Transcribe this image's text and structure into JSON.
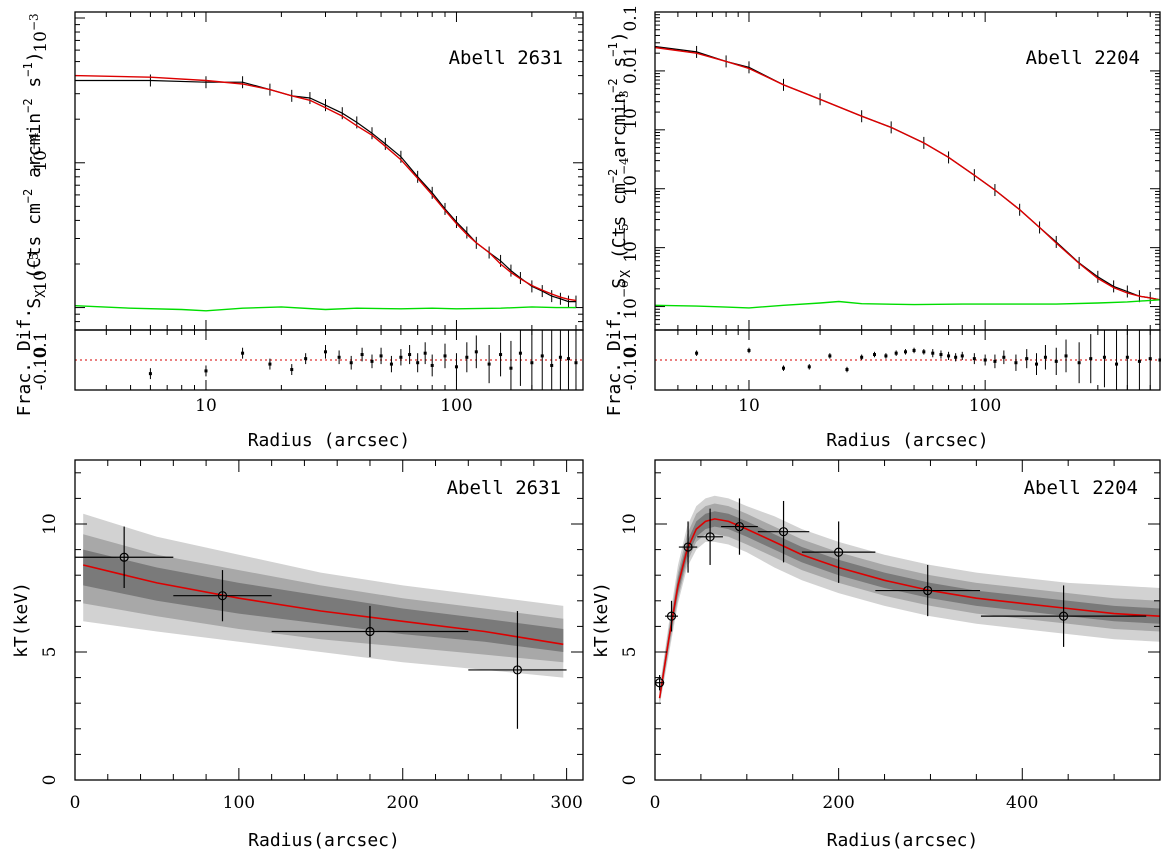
{
  "chart_data": [
    {
      "type": "line",
      "panel": "sx-2631",
      "annotation": "Abell 2631",
      "ylabel": "S_X (Cts cm^-2 arcmin^-2 s^-1)",
      "xlabel": "Radius (arcsec)",
      "xscale": "log",
      "yscale": "log",
      "xlim": [
        3,
        320
      ],
      "ylim": [
        7e-06,
        0.0011
      ],
      "x_ticks": [
        "10",
        "100"
      ],
      "y_ticks": [
        "10^-5",
        "10^-4",
        "10^-3"
      ],
      "series": [
        {
          "role": "data",
          "color": "#000000",
          "x": [
            3,
            6,
            10,
            14,
            18,
            22,
            26,
            30,
            35,
            40,
            46,
            52,
            60,
            70,
            80,
            90,
            100,
            110,
            120,
            135,
            150,
            165,
            180,
            200,
            220,
            240,
            260,
            280,
            300
          ],
          "y": [
            0.00037,
            0.00037,
            0.00036,
            0.00036,
            0.00032,
            0.00029,
            0.00028,
            0.00025,
            0.00022,
            0.00019,
            0.00016,
            0.000135,
            0.00011,
            8e-05,
            6.2e-05,
            4.8e-05,
            3.9e-05,
            3.3e-05,
            2.8e-05,
            2.4e-05,
            2.1e-05,
            1.8e-05,
            1.6e-05,
            1.4e-05,
            1.3e-05,
            1.2e-05,
            1.15e-05,
            1.1e-05,
            1.1e-05
          ]
        },
        {
          "role": "model",
          "color": "#dd0000",
          "x": [
            3,
            6,
            10,
            14,
            18,
            22,
            26,
            30,
            35,
            40,
            46,
            52,
            60,
            70,
            80,
            90,
            100,
            110,
            120,
            135,
            150,
            165,
            180,
            200,
            220,
            240,
            260,
            280,
            300
          ],
          "y": [
            0.0004,
            0.00039,
            0.00037,
            0.00035,
            0.00032,
            0.00029,
            0.00027,
            0.00024,
            0.00021,
            0.00018,
            0.000155,
            0.00013,
            0.000105,
            7.8e-05,
            6e-05,
            4.7e-05,
            3.8e-05,
            3.2e-05,
            2.8e-05,
            2.4e-05,
            2e-05,
            1.75e-05,
            1.58e-05,
            1.42e-05,
            1.32e-05,
            1.24e-05,
            1.18e-05,
            1.14e-05,
            1.12e-05
          ]
        },
        {
          "role": "background",
          "color": "#00dd00",
          "x": [
            3,
            5,
            8,
            10,
            14,
            20,
            30,
            40,
            60,
            80,
            100,
            150,
            200,
            250,
            300
          ],
          "y": [
            1.03e-05,
            9.9e-06,
            9.7e-06,
            9.5e-06,
            9.9e-06,
            1.01e-05,
            9.7e-06,
            9.9e-06,
            9.8e-06,
            9.9e-06,
            9.8e-06,
            9.9e-06,
            1.01e-05,
            1e-05,
            1e-05
          ]
        }
      ]
    },
    {
      "type": "scatter",
      "panel": "res-2631",
      "ylabel": "Frac. Dif.",
      "xscale": "log",
      "xlim": [
        3,
        320
      ],
      "ylim": [
        -0.22,
        0.22
      ],
      "y_ticks": [
        "-0.1",
        "0",
        "0.1"
      ],
      "reference_line": 0,
      "points_x": [
        6,
        10,
        14,
        18,
        22,
        25,
        30,
        34,
        38,
        42,
        46,
        50,
        55,
        60,
        65,
        70,
        75,
        80,
        90,
        100,
        110,
        120,
        135,
        150,
        165,
        180,
        200,
        220,
        240,
        260,
        280,
        300
      ],
      "points_y": [
        -0.1,
        -0.08,
        0.05,
        -0.03,
        -0.07,
        0.01,
        0.06,
        0.02,
        -0.02,
        0.04,
        -0.01,
        0.03,
        -0.03,
        0.02,
        0.04,
        -0.02,
        0.05,
        -0.04,
        0.03,
        -0.05,
        0.02,
        0.06,
        -0.03,
        0.04,
        -0.06,
        0.05,
        -0.02,
        0.03,
        -0.04,
        0.02,
        0.01,
        -0.02
      ],
      "points_err": [
        0.04,
        0.04,
        0.04,
        0.04,
        0.04,
        0.04,
        0.05,
        0.05,
        0.05,
        0.05,
        0.05,
        0.06,
        0.06,
        0.06,
        0.07,
        0.07,
        0.08,
        0.08,
        0.09,
        0.1,
        0.11,
        0.12,
        0.14,
        0.16,
        0.2,
        0.24,
        0.3,
        0.35,
        0.4,
        0.45,
        0.5,
        0.5
      ]
    },
    {
      "type": "line",
      "panel": "sx-2204",
      "annotation": "Abell 2204",
      "ylabel": "S_X (Cts cm^-2 arcmin^-2 s^-1)",
      "xlabel": "Radius (arcsec)",
      "xscale": "log",
      "yscale": "log",
      "xlim": [
        4,
        550
      ],
      "ylim": [
        4e-07,
        0.1
      ],
      "x_ticks": [
        "10",
        "100"
      ],
      "y_ticks": [
        "10^-6",
        "10^-5",
        "10^-4",
        "10^-3",
        "0.01",
        "0.1"
      ],
      "series": [
        {
          "role": "data",
          "color": "#000000",
          "x": [
            4,
            6,
            8,
            10,
            14,
            20,
            30,
            40,
            55,
            70,
            90,
            110,
            140,
            170,
            200,
            250,
            300,
            350,
            400,
            450,
            500,
            550
          ],
          "y": [
            0.026,
            0.021,
            0.0145,
            0.0115,
            0.0058,
            0.0033,
            0.0017,
            0.0011,
            0.0006,
            0.00034,
            0.00017,
            9.5e-05,
            4.4e-05,
            2.2e-05,
            1.25e-05,
            5.5e-06,
            3.2e-06,
            2.2e-06,
            1.8e-06,
            1.5e-06,
            1.4e-06,
            1.3e-06
          ]
        },
        {
          "role": "model",
          "color": "#dd0000",
          "x": [
            4,
            6,
            8,
            10,
            14,
            20,
            30,
            40,
            55,
            70,
            90,
            110,
            140,
            170,
            200,
            250,
            300,
            350,
            400,
            450,
            500,
            550
          ],
          "y": [
            0.025,
            0.02,
            0.0145,
            0.011,
            0.0058,
            0.0033,
            0.0017,
            0.0011,
            0.0006,
            0.00034,
            0.00017,
            9.5e-05,
            4.4e-05,
            2.2e-05,
            1.2e-05,
            5.4e-06,
            3e-06,
            2.1e-06,
            1.7e-06,
            1.5e-06,
            1.4e-06,
            1.3e-06
          ]
        },
        {
          "role": "background",
          "color": "#00dd00",
          "x": [
            4,
            6,
            8,
            10,
            14,
            20,
            24,
            30,
            50,
            80,
            120,
            200,
            300,
            400,
            550
          ],
          "y": [
            1.05e-06,
            1.02e-06,
            9.8e-07,
            9.5e-07,
            1.05e-06,
            1.15e-06,
            1.22e-06,
            1.12e-06,
            1.08e-06,
            1.1e-06,
            1.1e-06,
            1.1e-06,
            1.15e-06,
            1.2e-06,
            1.3e-06
          ]
        }
      ]
    },
    {
      "type": "scatter",
      "panel": "res-2204",
      "ylabel": "Frac. Dif.",
      "xscale": "log",
      "xlim": [
        4,
        550
      ],
      "ylim": [
        -0.22,
        0.22
      ],
      "y_ticks": [
        "-0.1",
        "0",
        "0.1"
      ],
      "reference_line": 0,
      "points_x": [
        6,
        10,
        14,
        18,
        22,
        26,
        30,
        34,
        38,
        42,
        46,
        50,
        55,
        60,
        65,
        70,
        75,
        80,
        90,
        100,
        110,
        120,
        135,
        150,
        165,
        180,
        200,
        220,
        250,
        280,
        320,
        360,
        400,
        450,
        500,
        550
      ],
      "points_y": [
        0.05,
        0.07,
        -0.06,
        -0.05,
        0.03,
        -0.07,
        0.02,
        0.04,
        0.03,
        0.05,
        0.06,
        0.07,
        0.06,
        0.05,
        0.04,
        0.03,
        0.02,
        0.03,
        0.01,
        0.0,
        -0.01,
        0.02,
        -0.02,
        0.01,
        -0.03,
        0.02,
        -0.01,
        0.03,
        -0.02,
        0.01,
        0.02,
        -0.03,
        0.02,
        -0.01,
        0.01,
        0.0
      ],
      "points_err": [
        0.02,
        0.02,
        0.02,
        0.02,
        0.02,
        0.02,
        0.02,
        0.02,
        0.02,
        0.02,
        0.02,
        0.02,
        0.02,
        0.03,
        0.03,
        0.03,
        0.03,
        0.03,
        0.04,
        0.04,
        0.05,
        0.05,
        0.06,
        0.07,
        0.08,
        0.09,
        0.1,
        0.12,
        0.15,
        0.18,
        0.22,
        0.3,
        0.4,
        0.5,
        0.5,
        0.5
      ]
    },
    {
      "type": "line",
      "panel": "kt-2631",
      "annotation": "Abell 2631",
      "xlabel": "Radius(arcsec)",
      "ylabel": "kT(keV)",
      "xlim": [
        0,
        310
      ],
      "ylim": [
        0,
        12.5
      ],
      "x_ticks": [
        0,
        100,
        200,
        300
      ],
      "y_ticks": [
        0,
        5,
        10
      ],
      "model": {
        "color": "#dd0000",
        "x": [
          5,
          50,
          100,
          150,
          200,
          250,
          298
        ],
        "y": [
          8.4,
          7.7,
          7.1,
          6.6,
          6.2,
          5.8,
          5.3
        ]
      },
      "bands": [
        {
          "level": "outer",
          "color": "#d2d2d2",
          "lo": [
            6.2,
            5.8,
            5.4,
            5.0,
            4.6,
            4.3,
            4.0
          ],
          "hi": [
            10.4,
            9.5,
            8.8,
            8.1,
            7.6,
            7.2,
            6.8
          ]
        },
        {
          "level": "middle",
          "color": "#a8a8a8",
          "lo": [
            6.9,
            6.4,
            5.9,
            5.5,
            5.2,
            4.9,
            4.6
          ],
          "hi": [
            9.6,
            8.8,
            8.2,
            7.6,
            7.1,
            6.7,
            6.3
          ]
        },
        {
          "level": "inner",
          "color": "#7a7a7a",
          "lo": [
            7.6,
            7.0,
            6.5,
            6.1,
            5.7,
            5.4,
            5.0
          ],
          "hi": [
            9.0,
            8.3,
            7.7,
            7.2,
            6.7,
            6.3,
            5.9
          ]
        }
      ],
      "points": [
        {
          "x": 30,
          "y": 8.7,
          "xerr": 30,
          "yerr": 1.2
        },
        {
          "x": 90,
          "y": 7.2,
          "xerr": 30,
          "yerr": 1.0
        },
        {
          "x": 180,
          "y": 5.8,
          "xerr": 60,
          "yerr": 1.0
        },
        {
          "x": 270,
          "y": 4.3,
          "xerr": 30,
          "yerr": 2.3
        }
      ]
    },
    {
      "type": "line",
      "panel": "kt-2204",
      "annotation": "Abell 2204",
      "xlabel": "Radius(arcsec)",
      "ylabel": "kT(keV)",
      "xlim": [
        0,
        550
      ],
      "ylim": [
        0,
        12.5
      ],
      "x_ticks": [
        0,
        200,
        400
      ],
      "y_ticks": [
        0,
        5,
        10
      ],
      "model": {
        "color": "#dd0000",
        "x": [
          5,
          15,
          25,
          35,
          45,
          55,
          65,
          80,
          100,
          130,
          160,
          200,
          250,
          300,
          350,
          400,
          450,
          500,
          550
        ],
        "y": [
          3.2,
          5.5,
          7.6,
          9.0,
          9.8,
          10.1,
          10.2,
          10.1,
          9.8,
          9.3,
          8.8,
          8.3,
          7.8,
          7.4,
          7.1,
          6.9,
          6.7,
          6.5,
          6.4
        ]
      },
      "bands": [
        {
          "level": "outer",
          "color": "#d2d2d2",
          "lo": [
            2.9,
            4.9,
            6.9,
            8.3,
            9.0,
            9.3,
            9.3,
            9.2,
            8.9,
            8.3,
            7.8,
            7.3,
            6.8,
            6.4,
            6.1,
            5.9,
            5.7,
            5.5,
            5.4
          ],
          "hi": [
            3.6,
            6.1,
            8.4,
            9.9,
            10.7,
            11.0,
            11.1,
            11.0,
            10.7,
            10.3,
            9.8,
            9.3,
            8.8,
            8.4,
            8.1,
            7.9,
            7.7,
            7.6,
            7.5
          ]
        },
        {
          "level": "middle",
          "color": "#a8a8a8",
          "lo": [
            3.0,
            5.1,
            7.1,
            8.5,
            9.3,
            9.6,
            9.6,
            9.5,
            9.2,
            8.7,
            8.2,
            7.7,
            7.2,
            6.8,
            6.5,
            6.3,
            6.1,
            5.9,
            5.8
          ],
          "hi": [
            3.5,
            5.9,
            8.1,
            9.6,
            10.4,
            10.7,
            10.8,
            10.7,
            10.4,
            9.9,
            9.4,
            8.9,
            8.4,
            8.0,
            7.7,
            7.5,
            7.3,
            7.1,
            7.0
          ]
        },
        {
          "level": "inner",
          "color": "#7a7a7a",
          "lo": [
            3.1,
            5.3,
            7.3,
            8.7,
            9.5,
            9.8,
            9.9,
            9.8,
            9.5,
            9.0,
            8.5,
            8.0,
            7.5,
            7.1,
            6.8,
            6.6,
            6.4,
            6.2,
            6.1
          ],
          "hi": [
            3.4,
            5.7,
            7.9,
            9.3,
            10.1,
            10.4,
            10.5,
            10.4,
            10.1,
            9.6,
            9.1,
            8.6,
            8.1,
            7.7,
            7.4,
            7.2,
            7.0,
            6.8,
            6.7
          ]
        }
      ],
      "points": [
        {
          "x": 5,
          "y": 3.8,
          "xerr": 5,
          "yerr": 0.3
        },
        {
          "x": 18,
          "y": 6.4,
          "xerr": 7,
          "yerr": 0.6
        },
        {
          "x": 36,
          "y": 9.1,
          "xerr": 10,
          "yerr": 1.0
        },
        {
          "x": 60,
          "y": 9.5,
          "xerr": 14,
          "yerr": 1.1
        },
        {
          "x": 92,
          "y": 9.9,
          "xerr": 20,
          "yerr": 1.1
        },
        {
          "x": 140,
          "y": 9.7,
          "xerr": 28,
          "yerr": 1.2
        },
        {
          "x": 200,
          "y": 8.9,
          "xerr": 40,
          "yerr": 1.2
        },
        {
          "x": 297,
          "y": 7.4,
          "xerr": 57,
          "yerr": 1.0
        },
        {
          "x": 445,
          "y": 6.4,
          "xerr": 90,
          "yerr": 1.2
        }
      ]
    }
  ]
}
